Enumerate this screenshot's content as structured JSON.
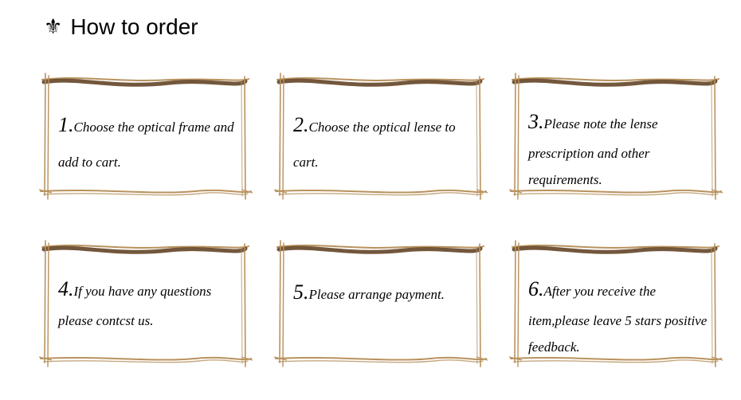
{
  "title": "How to order",
  "frame_color_dark": "#5a3a1a",
  "frame_color_light": "#b8925e",
  "cards": [
    {
      "num": "1",
      "text": "Choose the optical frame and add to cart.",
      "tight": false
    },
    {
      "num": "2",
      "text": "Choose the optical lense to cart.",
      "tight": false
    },
    {
      "num": "3",
      "text": "Please note the lense prescription and other requirements.",
      "tight": true
    },
    {
      "num": "4",
      "text": "If you  have any questions please  contcst us.",
      "tight": true
    },
    {
      "num": "5",
      "text": "Please arrange payment.",
      "tight": false
    },
    {
      "num": "6",
      "text": "After you receive the item,please leave 5 stars positive feedback.",
      "tight": true
    }
  ]
}
